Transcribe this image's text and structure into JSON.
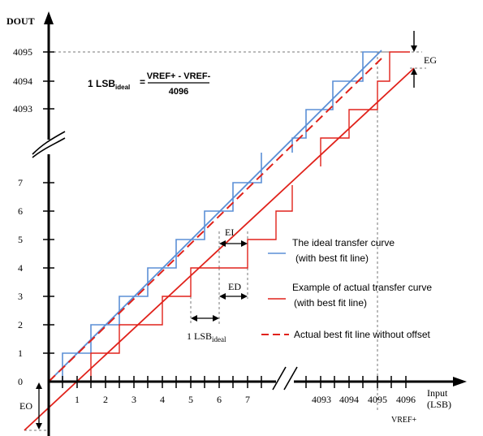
{
  "axes": {
    "y_title": "DOUT",
    "x_title_line1": "Input",
    "x_title_line2": "(LSB)",
    "vref_label": "VREF+"
  },
  "y_ticks": [
    "0",
    "1",
    "2",
    "3",
    "4",
    "5",
    "6",
    "7",
    "4093",
    "4094",
    "4095"
  ],
  "x_ticks": [
    "1",
    "2",
    "3",
    "4",
    "5",
    "6",
    "7",
    "4093",
    "4094",
    "4095",
    "4096"
  ],
  "formula": {
    "lhs_main": "1 LSB",
    "lhs_sub": "ideal",
    "equals": "=",
    "numerator": "VREF+ - VREF-",
    "denominator": "4096"
  },
  "annotations": {
    "eg": "EG",
    "ei": "EI",
    "ed": "ED",
    "eo": "EO",
    "lsb_main": "1 LSB",
    "lsb_sub": "ideal"
  },
  "legend": [
    {
      "line1": "The ideal transfer curve",
      "line2": "(with best fit line)",
      "color": "#5b8fd6",
      "style": "solid"
    },
    {
      "line1": "Example of actual transfer curve",
      "line2": "(with best fit line)",
      "color": "#e0221b",
      "style": "solid"
    },
    {
      "line1": "Actual best fit line without offset",
      "line2": "",
      "color": "#e0221b",
      "style": "dashed"
    }
  ],
  "colors": {
    "ideal": "#5b8fd6",
    "actual": "#e0221b",
    "axis": "#000000",
    "guide": "#777777"
  }
}
